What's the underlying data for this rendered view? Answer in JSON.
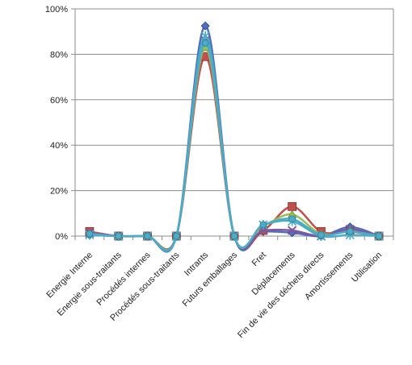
{
  "chart_data": {
    "type": "line",
    "title": "",
    "xlabel": "",
    "ylabel": "",
    "ylim": [
      0,
      100
    ],
    "yticks": [
      "0%",
      "20%",
      "40%",
      "60%",
      "80%",
      "100%"
    ],
    "ytick_values": [
      0,
      20,
      40,
      60,
      80,
      100
    ],
    "grid": true,
    "smooth": true,
    "categories": [
      "Energie Interne",
      "Energie sous-traitants",
      "Procédés internes",
      "Procédés sous-traitants",
      "Intrants",
      "Futurs emballages",
      "Fret",
      "Déplacements",
      "Fin de vie des déchets directs",
      "Amortissements",
      "Utilisation"
    ],
    "series": [
      {
        "color": "#4F6EBC",
        "marker": "diamond",
        "values": [
          0.5,
          0,
          0,
          0,
          92.5,
          0,
          2.0,
          1.5,
          0,
          4.0,
          0
        ]
      },
      {
        "color": "#C0504D",
        "marker": "square",
        "values": [
          2.0,
          0,
          0,
          0,
          79.0,
          0,
          2.5,
          13.0,
          2.0,
          2.0,
          0
        ]
      },
      {
        "color": "#9BBB59",
        "marker": "triangle",
        "values": [
          1.0,
          0,
          0,
          0,
          83.0,
          0,
          4.5,
          9.5,
          1.0,
          2.5,
          0
        ]
      },
      {
        "color": "#7E57A0",
        "marker": "x",
        "values": [
          1.5,
          0,
          0,
          0,
          86.0,
          0,
          2.5,
          2.5,
          0,
          3.0,
          0
        ]
      },
      {
        "color": "#4BACC6",
        "marker": "star",
        "values": [
          0.5,
          0,
          0,
          0,
          88.0,
          0,
          5.0,
          6.5,
          0,
          0.5,
          0
        ]
      },
      {
        "color": "#4BACC6",
        "marker": "circle",
        "values": [
          1.0,
          0,
          0,
          0,
          85.0,
          0,
          5.0,
          7.5,
          0.5,
          2.0,
          0
        ]
      }
    ]
  }
}
